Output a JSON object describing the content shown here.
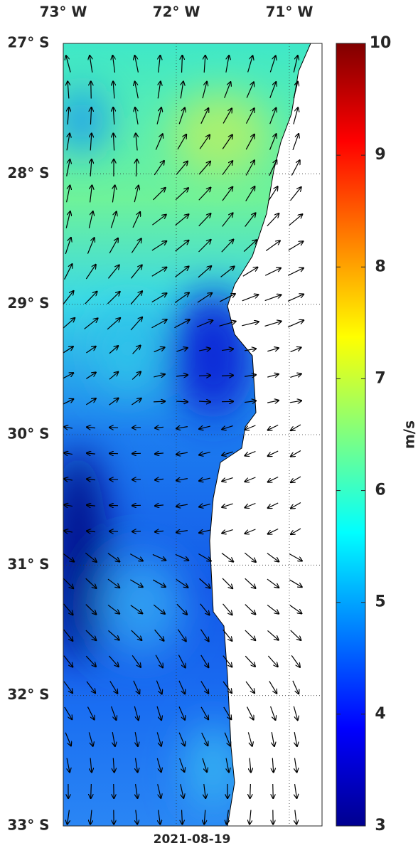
{
  "map": {
    "lon_labels": [
      "73° W",
      "72° W",
      "71° W"
    ],
    "lat_labels": [
      "27° S",
      "28° S",
      "29° S",
      "30° S",
      "31° S",
      "32° S",
      "33° S"
    ],
    "colorbar": {
      "label": "m/s",
      "range": [
        3,
        10
      ],
      "ticks": [
        3,
        4,
        5,
        6,
        7,
        8,
        9,
        10
      ]
    },
    "date": "2021-08-19"
  }
}
